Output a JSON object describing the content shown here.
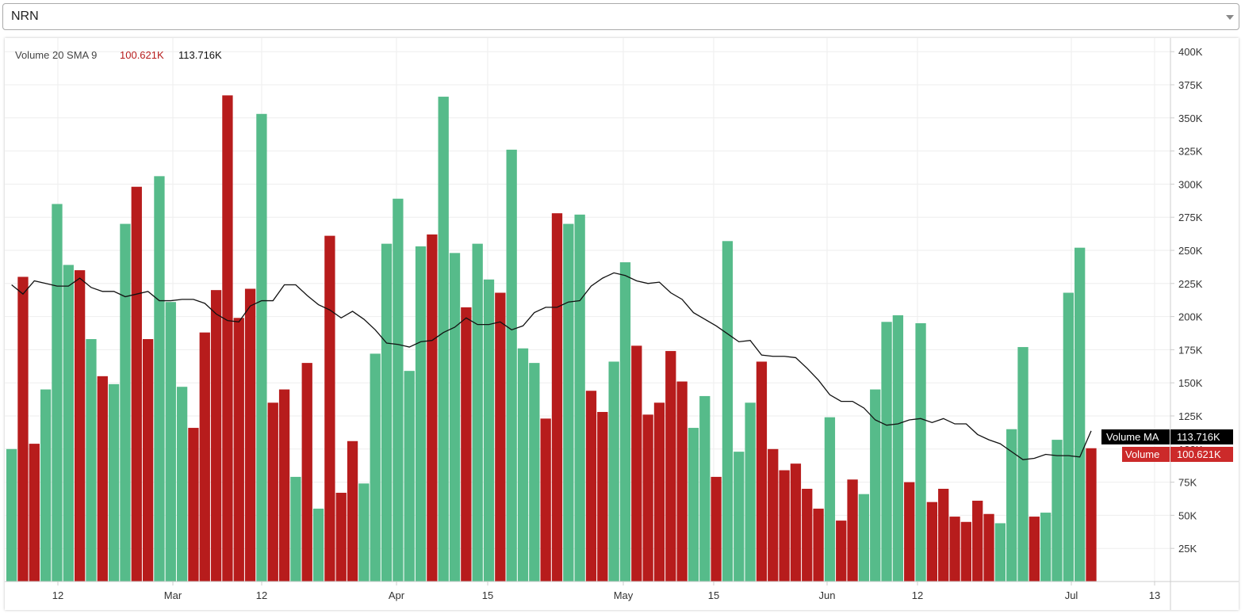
{
  "symbol_select": {
    "value": "NRN"
  },
  "legend": {
    "name": "Volume 20 SMA 9",
    "volume_value": "100.621K",
    "ma_value": "113.716K"
  },
  "price_tags": {
    "ma_label": "Volume MA",
    "ma_value": "113.716K",
    "vol_label": "Volume",
    "vol_value": "100.621K"
  },
  "colors": {
    "up": "#56bb8a",
    "down": "#b71c1c",
    "ma_line": "#111111",
    "grid": "#eeeeee",
    "tag_ma_bg": "#000000",
    "tag_vol_bg": "#cc2a2a"
  },
  "chart_data": {
    "type": "bar",
    "title": "Volume 20 SMA 9",
    "ylim": [
      0,
      400000
    ],
    "y_ticks": [
      "25K",
      "50K",
      "75K",
      "100K",
      "125K",
      "150K",
      "175K",
      "200K",
      "225K",
      "250K",
      "275K",
      "300K",
      "325K",
      "350K",
      "375K",
      "400K"
    ],
    "x_tick_labels": [
      "12",
      "Mar",
      "12",
      "Apr",
      "15",
      "May",
      "15",
      "Jun",
      "12",
      "Jul",
      "13"
    ],
    "series": [
      {
        "name": "Volume",
        "values": [
          100000,
          230000,
          104000,
          145000,
          285000,
          239000,
          235000,
          183000,
          155000,
          149000,
          270000,
          298000,
          183000,
          306000,
          211000,
          147000,
          116000,
          188000,
          220000,
          367000,
          199000,
          221000,
          353000,
          135000,
          145000,
          79000,
          165000,
          55000,
          261000,
          67000,
          106000,
          74000,
          172000,
          255000,
          289000,
          159000,
          253000,
          262000,
          366000,
          248000,
          207000,
          255000,
          228000,
          218000,
          326000,
          176000,
          165000,
          123000,
          278000,
          270000,
          277000,
          144000,
          128000,
          166000,
          241000,
          178000,
          126000,
          135000,
          174000,
          151000,
          116000,
          140000,
          79000,
          257000,
          98000,
          135000,
          166000,
          100000,
          84000,
          89000,
          70000,
          55000,
          124000,
          46000,
          77000,
          66000,
          145000,
          196000,
          201000,
          75000,
          195000,
          60000,
          70000,
          49000,
          45000,
          61000,
          51000,
          44000,
          115000,
          177000,
          49000,
          52000,
          107000,
          218000,
          252000,
          100621
        ],
        "direction": [
          "up",
          "down",
          "down",
          "up",
          "up",
          "up",
          "down",
          "up",
          "down",
          "up",
          "up",
          "down",
          "down",
          "up",
          "up",
          "up",
          "down",
          "down",
          "down",
          "down",
          "down",
          "down",
          "up",
          "down",
          "down",
          "up",
          "down",
          "up",
          "down",
          "down",
          "down",
          "up",
          "up",
          "up",
          "up",
          "up",
          "up",
          "down",
          "up",
          "up",
          "down",
          "up",
          "up",
          "down",
          "up",
          "up",
          "up",
          "down",
          "down",
          "up",
          "up",
          "down",
          "down",
          "up",
          "up",
          "down",
          "down",
          "down",
          "down",
          "down",
          "up",
          "up",
          "down",
          "up",
          "up",
          "up",
          "down",
          "down",
          "down",
          "down",
          "down",
          "down",
          "up",
          "down",
          "down",
          "up",
          "up",
          "up",
          "up",
          "down",
          "up",
          "down",
          "down",
          "down",
          "down",
          "down",
          "down",
          "up",
          "up",
          "up",
          "down",
          "up",
          "up",
          "up",
          "up",
          "down"
        ]
      },
      {
        "name": "Volume MA",
        "values": [
          224000,
          217000,
          227000,
          225000,
          223000,
          223000,
          229000,
          222000,
          219000,
          219000,
          215000,
          217000,
          219000,
          212000,
          212000,
          213000,
          213000,
          210000,
          202000,
          197000,
          196000,
          208000,
          212000,
          212000,
          224000,
          224000,
          216000,
          209000,
          205000,
          199000,
          204000,
          198000,
          190000,
          180000,
          179000,
          177000,
          181000,
          182000,
          188000,
          192000,
          199000,
          194000,
          194000,
          196000,
          190000,
          193000,
          203000,
          207000,
          207000,
          211000,
          212000,
          223000,
          229000,
          233000,
          231000,
          227000,
          225000,
          226000,
          218000,
          213000,
          203000,
          198000,
          193000,
          187000,
          181000,
          182000,
          171000,
          170000,
          170000,
          169000,
          161000,
          152000,
          141000,
          136000,
          136000,
          131000,
          122000,
          118000,
          119000,
          122000,
          123000,
          120000,
          123000,
          119000,
          119000,
          111000,
          107000,
          104000,
          98000,
          92000,
          93000,
          96000,
          95000,
          95000,
          94000,
          113716
        ]
      }
    ]
  }
}
